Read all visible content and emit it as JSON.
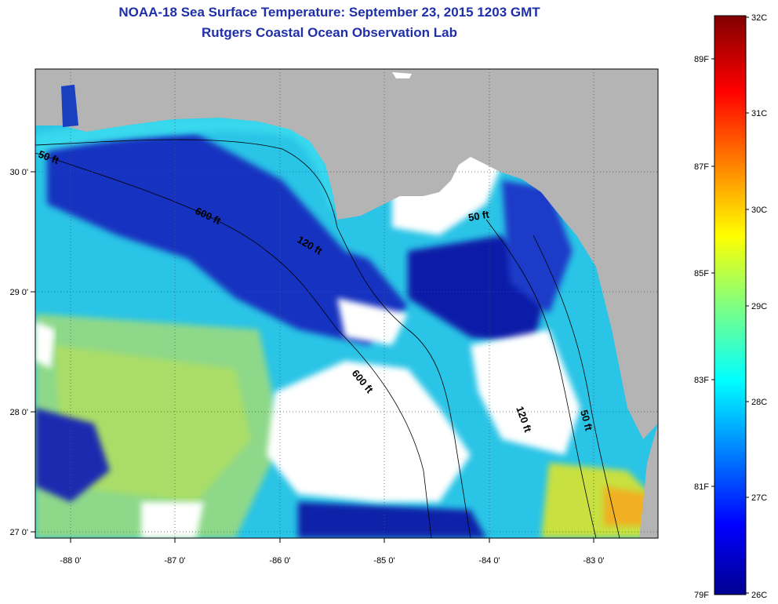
{
  "header": {
    "title": "NOAA-18 Sea Surface Temperature:  September 23, 2015 1203 GMT",
    "subtitle": "Rutgers Coastal Ocean Observation Lab"
  },
  "map": {
    "x_ticks": [
      "-88 0'",
      "-87 0'",
      "-86 0'",
      "-85 0'",
      "-84 0'",
      "-83 0'"
    ],
    "y_ticks": [
      "30 0'",
      "29 0'",
      "28 0'",
      "27 0'"
    ],
    "contour_labels": [
      "50 ft",
      "600 ft",
      "120 ft",
      "50 ft",
      "600 ft",
      "120 ft",
      "50 ft"
    ],
    "colors": {
      "land": "#b4b4b4",
      "cloud": "#ffffff",
      "cold": "#0b1aa0",
      "mid": "#22c8e8",
      "warm": "#b8e04a",
      "hot": "#f0a020"
    }
  },
  "colorbar": {
    "celsius_labels": [
      "32C",
      "31C",
      "30C",
      "29C",
      "28C",
      "27C",
      "26C"
    ],
    "fahrenheit_labels": [
      "89F",
      "87F",
      "85F",
      "83F",
      "81F",
      "79F"
    ],
    "min_c": 26,
    "max_c": 32
  }
}
